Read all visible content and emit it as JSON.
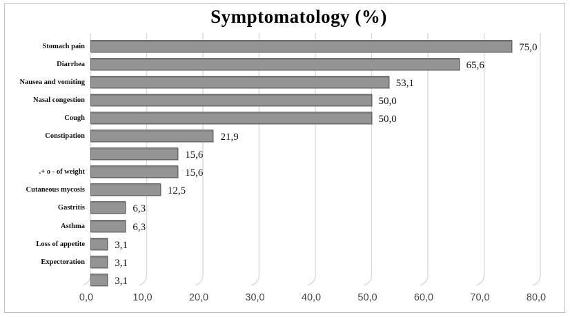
{
  "figure": {
    "title": "Symptomatology (%)"
  },
  "chart_data": {
    "type": "bar",
    "orientation": "horizontal",
    "title": "Symptomatology (%)",
    "categories": [
      "Stomach pain",
      "Diarrhea",
      "Nausea and vomiting",
      "Nasal congestion",
      "Cough",
      "Constipation",
      "",
      ".+ o - of weight",
      "Cutaneous mycosis",
      "Gastritis",
      "Asthma",
      "Loss of appetite",
      "Expectoration",
      ""
    ],
    "values": [
      75.0,
      65.6,
      53.1,
      50.0,
      50.0,
      21.9,
      15.6,
      15.6,
      12.5,
      6.3,
      6.3,
      3.1,
      3.1,
      3.1
    ],
    "value_labels": [
      "75,0",
      "65,6",
      "53,1",
      "50,0",
      "50,0",
      "21,9",
      "15,6",
      "15,6",
      "12,5",
      "6,3",
      "6,3",
      "3,1",
      "3,1",
      "3,1"
    ],
    "x_tick_values": [
      0,
      10,
      20,
      30,
      40,
      50,
      60,
      70,
      80
    ],
    "x_tick_labels": [
      "0,0",
      "10,0",
      "20,0",
      "30,0",
      "40,0",
      "50,0",
      "60,0",
      "70,0",
      "80,0"
    ],
    "xlim": [
      0,
      80
    ],
    "grid": true,
    "legend": "none",
    "colors": {
      "bar_fill": "#949494",
      "bar_border": "#696969",
      "gridline": "#d9d9d9",
      "tick_label": "#474747",
      "frame_border": "#c2c2c2",
      "background": "#ffffff"
    }
  }
}
